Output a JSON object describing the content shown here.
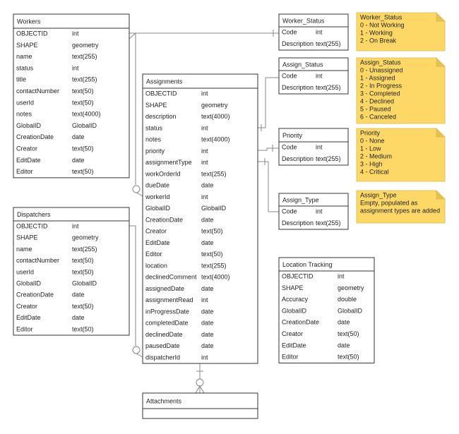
{
  "tables": [
    {
      "title": "Workers",
      "rows": [
        [
          "OBJECTID",
          "int"
        ],
        [
          "SHAPE",
          "geometry"
        ],
        [
          "name",
          "text(255)"
        ],
        [
          "status",
          "int"
        ],
        [
          "title",
          "text(255)"
        ],
        [
          "contactNumber",
          "text(50)"
        ],
        [
          "userId",
          "text(50)"
        ],
        [
          "notes",
          "text(4000)"
        ],
        [
          "GlobalID",
          "GlobalID"
        ],
        [
          "CreationDate",
          "date"
        ],
        [
          "Creator",
          "text(50)"
        ],
        [
          "EditDate",
          "date"
        ],
        [
          "Editor",
          "text(50)"
        ]
      ]
    },
    {
      "title": "Dispatchers",
      "rows": [
        [
          "OBJECTID",
          "int"
        ],
        [
          "SHAPE",
          "geometry"
        ],
        [
          "name",
          "text(255)"
        ],
        [
          "contactNumber",
          "text(50)"
        ],
        [
          "userId",
          "text(50)"
        ],
        [
          "GlobalID",
          "GlobalID"
        ],
        [
          "CreationDate",
          "date"
        ],
        [
          "Creator",
          "text(50)"
        ],
        [
          "EditDate",
          "date"
        ],
        [
          "Editor",
          "text(50)"
        ]
      ]
    },
    {
      "title": "Assignments",
      "rows": [
        [
          "OBJECTID",
          "int"
        ],
        [
          "SHAPE",
          "geometry"
        ],
        [
          "description",
          "text(4000)"
        ],
        [
          "status",
          "int"
        ],
        [
          "notes",
          "text(4000)"
        ],
        [
          "priority",
          "int"
        ],
        [
          "assignmentType",
          "int"
        ],
        [
          "workOrderId",
          "text(255)"
        ],
        [
          "dueDate",
          "date"
        ],
        [
          "workerId",
          "int"
        ],
        [
          "GlobalID",
          "GlobalID"
        ],
        [
          "CreationDate",
          "date"
        ],
        [
          "Creator",
          "text(50)"
        ],
        [
          "EditDate",
          "date"
        ],
        [
          "Editor",
          "text(50)"
        ],
        [
          "location",
          "text(255)"
        ],
        [
          "declinedComment",
          "text(4000)"
        ],
        [
          "assignedDate",
          "date"
        ],
        [
          "assignmentRead",
          "int"
        ],
        [
          "inProgressDate",
          "date"
        ],
        [
          "completedDate",
          "date"
        ],
        [
          "declinedDate",
          "date"
        ],
        [
          "pausedDate",
          "date"
        ],
        [
          "dispatcherId",
          "int"
        ]
      ]
    },
    {
      "title": "Attachments",
      "rows": []
    },
    {
      "title": "Worker_Status",
      "rows": [
        [
          "Code",
          "int"
        ],
        [
          "Description",
          "text(255)"
        ]
      ]
    },
    {
      "title": "Assign_Status",
      "rows": [
        [
          "Code",
          "int"
        ],
        [
          "Description",
          "text(255)"
        ]
      ]
    },
    {
      "title": "Priority",
      "rows": [
        [
          "Code",
          "int"
        ],
        [
          "Description",
          "text(255)"
        ]
      ]
    },
    {
      "title": "Assign_Type",
      "rows": [
        [
          "Code",
          "int"
        ],
        [
          "Description",
          "text(255)"
        ]
      ]
    },
    {
      "title": "Location Tracking",
      "rows": [
        [
          "OBJECTID",
          "int"
        ],
        [
          "SHAPE",
          "geometry"
        ],
        [
          "Accuracy",
          "double"
        ],
        [
          "GlobalID",
          "GlobalID"
        ],
        [
          "CreationDate",
          "date"
        ],
        [
          "Creator",
          "text(50)"
        ],
        [
          "EditDate",
          "date"
        ],
        [
          "Editor",
          "text(50)"
        ]
      ]
    }
  ],
  "notes": [
    {
      "lines": [
        "Worker_Status",
        "0 - Not Working",
        "1 - Working",
        "2 - On Break"
      ]
    },
    {
      "lines": [
        "Assign_Status",
        "0 - Unassigned",
        "1 - Assigned",
        "2 - In Progress",
        "3 - Completed",
        "4 - Declined",
        "5 - Paused",
        "6 - Canceled"
      ]
    },
    {
      "lines": [
        "Priority",
        "0 - None",
        "1 - Low",
        "2 - Medium",
        "3 - High",
        "4 - Critical"
      ]
    },
    {
      "lines": [
        "Assign_Type",
        "Empty, populated as",
        "assignment types are added"
      ]
    }
  ]
}
